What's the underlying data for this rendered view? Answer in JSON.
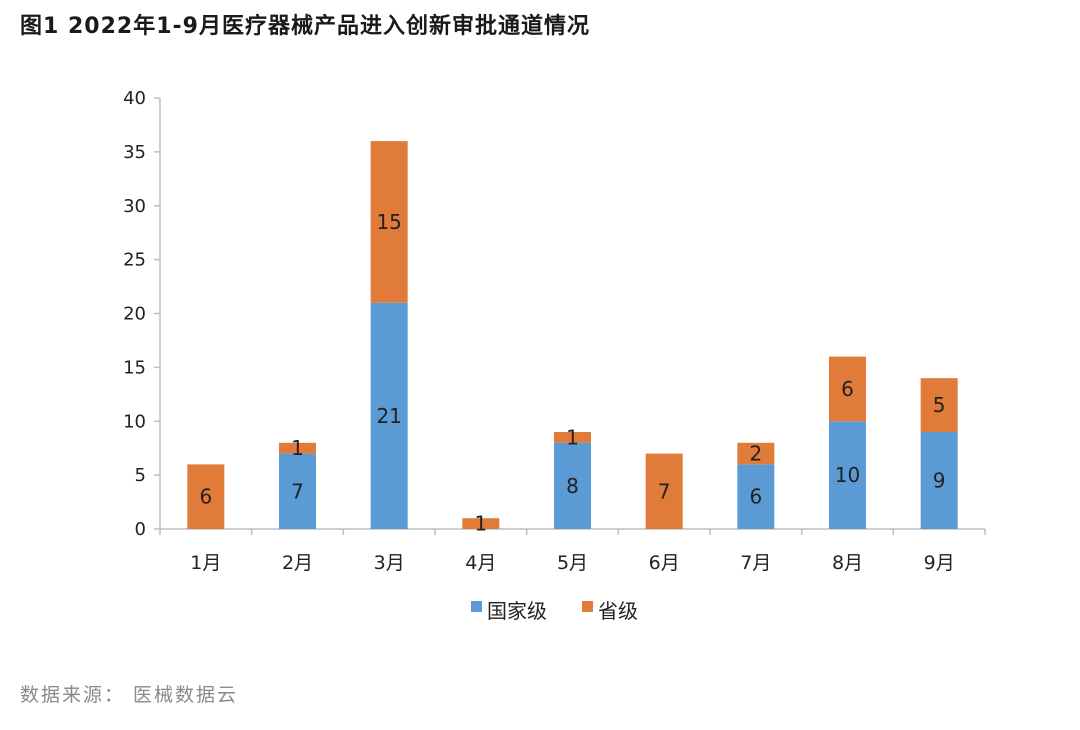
{
  "figure": {
    "title": "图1  2022年1-9月医疗器械产品进入创新审批通道情况",
    "source": "数据来源：  医械数据云"
  },
  "colors": {
    "national": "#5B9BD5",
    "provincial": "#E07B39",
    "axis": "#BFBFBF"
  },
  "chart_data": {
    "type": "bar",
    "stacked": true,
    "categories": [
      "1月",
      "2月",
      "3月",
      "4月",
      "5月",
      "6月",
      "7月",
      "8月",
      "9月"
    ],
    "series": [
      {
        "name": "国家级",
        "values": [
          0,
          7,
          21,
          0,
          8,
          0,
          6,
          10,
          9
        ]
      },
      {
        "name": "省级",
        "values": [
          6,
          1,
          15,
          1,
          1,
          7,
          2,
          6,
          5
        ]
      }
    ],
    "ylim": [
      0,
      40
    ],
    "yticks": [
      0,
      5,
      10,
      15,
      20,
      25,
      30,
      35,
      40
    ],
    "grid": false,
    "legend_position": "bottom"
  }
}
